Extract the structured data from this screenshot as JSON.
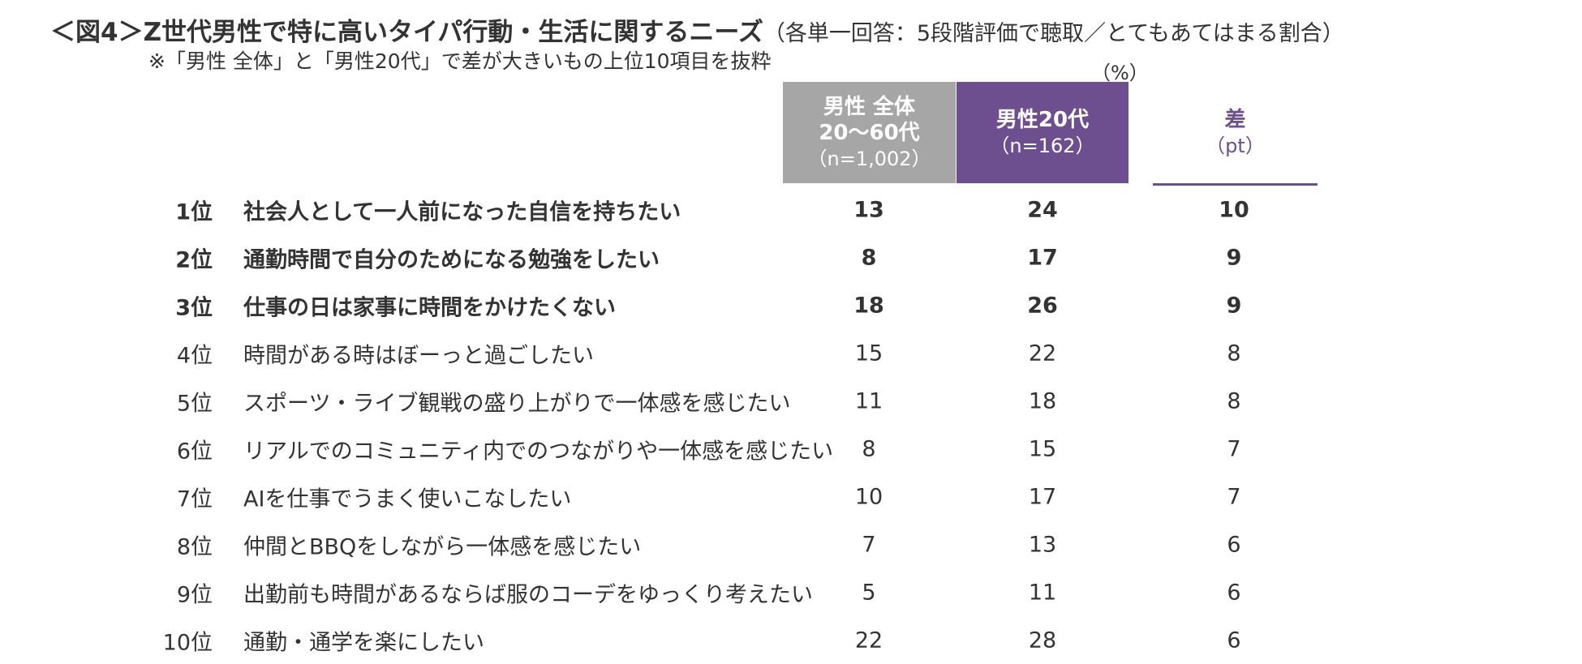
{
  "header": {
    "title": "＜図4＞Z世代男性で特に高いタイパ行動・生活に関するニーズ",
    "title_note": "（各単一回答：5段階評価で聴取／とてもあてはまる割合）",
    "subtitle": "※「男性 全体」と「男性20代」で差が大きいもの上位10項目を抜粋"
  },
  "table": {
    "unit": "（%）",
    "columns": [
      {
        "lines": [
          "男性 全体",
          "20～60代",
          "（n=1,002）"
        ]
      },
      {
        "lines": [
          "男性20代",
          "（n=162）"
        ]
      },
      {
        "lines": [
          "差",
          "（pt）"
        ]
      }
    ],
    "rows": [
      [
        "1位",
        "社会人として一人前になった自信を持ちたい",
        13,
        24,
        10
      ],
      [
        "2位",
        "通勤時間で自分のためになる勉強をしたい",
        8,
        17,
        9
      ],
      [
        "3位",
        "仕事の日は家事に時間をかけたくない",
        18,
        26,
        9
      ],
      [
        "4位",
        "時間がある時はぼーっと過ごしたい",
        15,
        22,
        8
      ],
      [
        "5位",
        "スポーツ・ライブ観戦の盛り上がりで一体感を感じたい",
        11,
        18,
        8
      ],
      [
        "6位",
        "リアルでのコミュニティ内でのつながりや一体感を感じたい",
        8,
        15,
        7
      ],
      [
        "7位",
        "AIを仕事でうまく使いこなしたい",
        10,
        17,
        7
      ],
      [
        "8位",
        "仲間とBBQをしながら一体感を感じたい",
        7,
        13,
        6
      ],
      [
        "9位",
        "出勤前も時間があるならば服のコーデをゆっくり考えたい",
        5,
        11,
        6
      ],
      [
        "10位",
        "通勤・通学を楽にしたい",
        22,
        28,
        6
      ]
    ]
  }
}
